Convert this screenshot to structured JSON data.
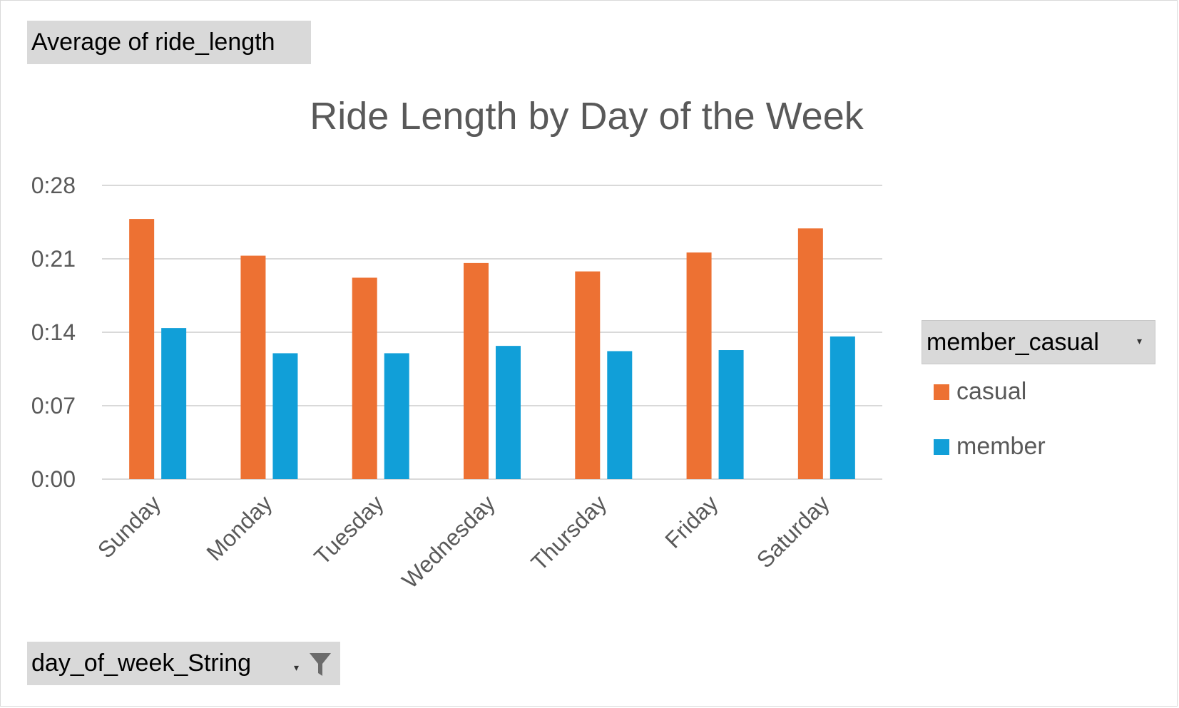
{
  "field_buttons": {
    "value": "Average  of ride_length",
    "axis": "day_of_week_String",
    "legend": "member_casual"
  },
  "chart_data": {
    "type": "bar",
    "title": "Ride Length by Day of the Week",
    "xlabel": "",
    "ylabel": "",
    "categories": [
      "Sunday",
      "Monday",
      "Tuesday",
      "Wednesday",
      "Thursday",
      "Friday",
      "Saturday"
    ],
    "y_ticks": [
      "0:00",
      "0:07",
      "0:14",
      "0:21",
      "0:28"
    ],
    "y_tick_values_minutes": [
      0,
      7,
      14,
      21,
      28
    ],
    "ylim_minutes": [
      0,
      28
    ],
    "grid": true,
    "legend_position": "right",
    "series": [
      {
        "name": "casual",
        "color": "#ED7133",
        "values_minutes": [
          24.8,
          21.3,
          19.2,
          20.6,
          19.8,
          21.6,
          23.9
        ]
      },
      {
        "name": "member",
        "color": "#119FD8",
        "values_minutes": [
          14.4,
          12.0,
          12.0,
          12.7,
          12.2,
          12.3,
          13.6
        ]
      }
    ]
  }
}
